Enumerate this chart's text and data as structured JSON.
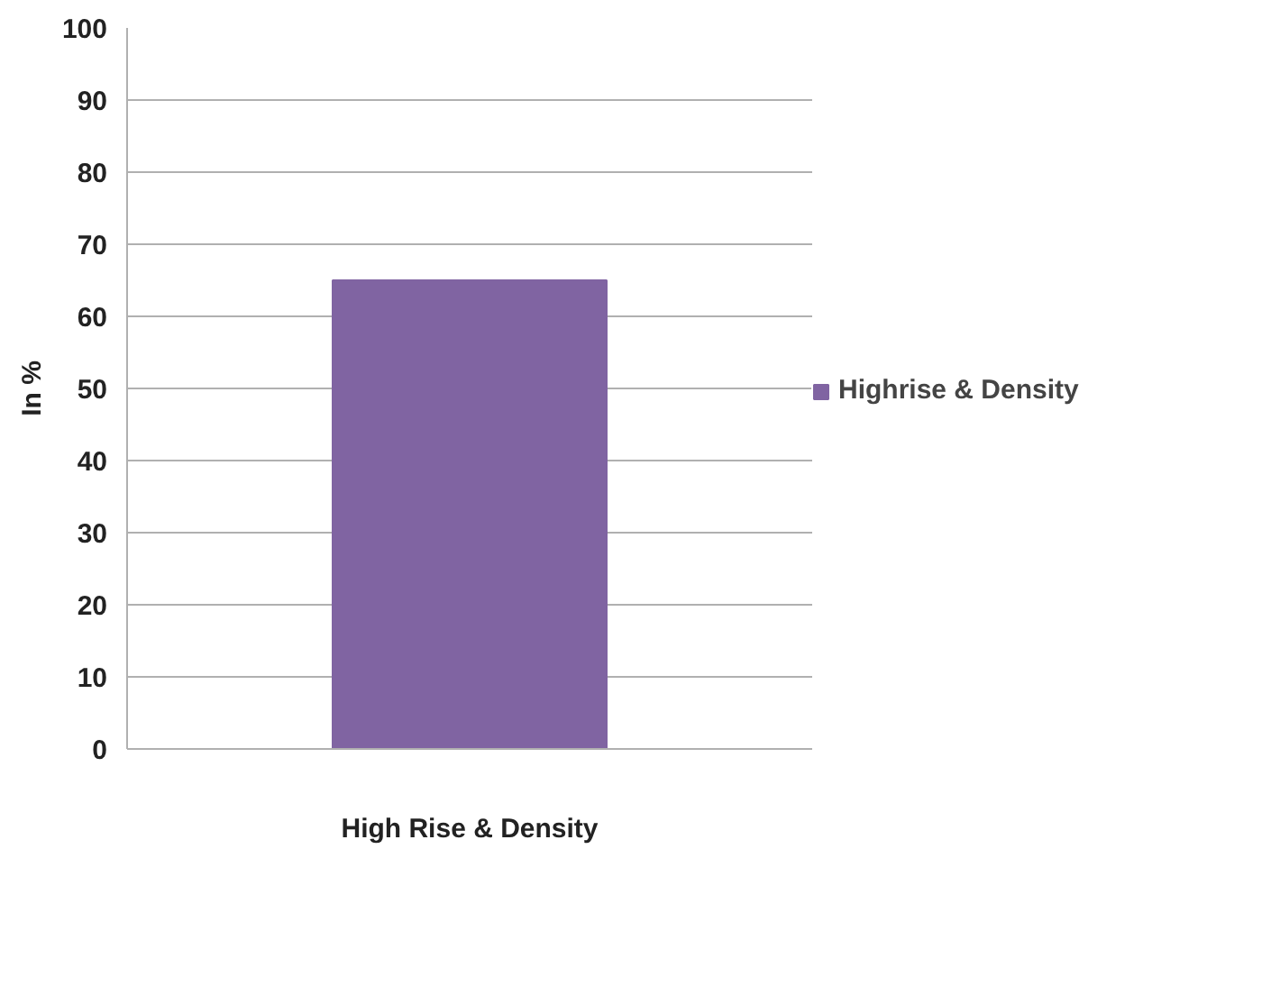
{
  "chart_data": {
    "type": "bar",
    "categories": [
      null
    ],
    "xlabel": "High Rise & Density",
    "ylabel": "In %",
    "series": [
      {
        "name": "Highrise & Density",
        "color": "#8064a2",
        "values": [
          65
        ]
      }
    ],
    "ylim": [
      0,
      100
    ],
    "yticks": [
      0,
      10,
      20,
      30,
      40,
      50,
      60,
      70,
      80,
      90,
      100
    ],
    "grid": "y",
    "legend": "right"
  }
}
